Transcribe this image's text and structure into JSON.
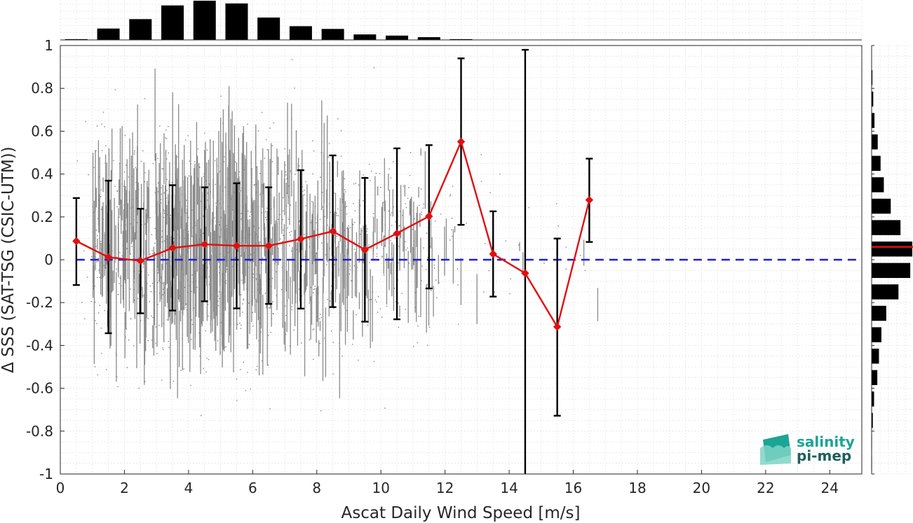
{
  "chart_data": {
    "type": "scatter",
    "xlabel": "Ascat Daily Wind Speed [m/s]",
    "ylabel": "Δ SSS (SAT-TSG (CSIC-UTM))",
    "xlim": [
      0,
      25
    ],
    "ylim": [
      -1,
      1
    ],
    "xticks": [
      0,
      2,
      4,
      6,
      8,
      10,
      12,
      14,
      16,
      18,
      20,
      22,
      24
    ],
    "yticks": [
      -1,
      -0.8,
      -0.6,
      -0.4,
      -0.2,
      0,
      0.2,
      0.4,
      0.6,
      0.8,
      1
    ],
    "ytick_labels": [
      "-1",
      "-0.8",
      "-0.6",
      "-0.4",
      "-0.2",
      "0",
      "0.2",
      "0.4",
      "0.6",
      "0.8",
      "1"
    ],
    "grid": true,
    "zero_line": {
      "y": 0,
      "color": "#1f1fd6",
      "style": "dashed"
    },
    "scatter_color": "#808080",
    "bin_means": {
      "color": "#e01010",
      "x": [
        0.5,
        1.5,
        2.5,
        3.5,
        4.5,
        5.5,
        6.5,
        7.5,
        8.5,
        9.5,
        10.5,
        11.5,
        12.5,
        13.5,
        14.5,
        15.5,
        16.5
      ],
      "y": [
        0.087,
        0.012,
        -0.005,
        0.055,
        0.072,
        0.065,
        0.065,
        0.097,
        0.133,
        0.047,
        0.123,
        0.203,
        0.551,
        0.027,
        -0.063,
        -0.313,
        0.279
      ]
    },
    "error_bars": {
      "color": "#000000",
      "lower": [
        -0.118,
        -0.343,
        -0.25,
        -0.237,
        -0.194,
        -0.227,
        -0.206,
        -0.228,
        -0.221,
        -0.289,
        -0.278,
        -0.134,
        0.163,
        -0.172,
        -1.0,
        -0.728,
        0.083
      ],
      "upper": [
        0.288,
        0.369,
        0.238,
        0.348,
        0.338,
        0.357,
        0.338,
        0.418,
        0.487,
        0.382,
        0.52,
        0.535,
        0.94,
        0.226,
        0.98,
        0.099,
        0.472
      ]
    },
    "top_histogram": {
      "bin_centers": [
        0.5,
        1.5,
        2.5,
        3.5,
        4.5,
        5.5,
        6.5,
        7.5,
        8.5,
        9.5,
        10.5,
        11.5,
        12.5
      ],
      "relative_counts": [
        0.02,
        0.29,
        0.53,
        0.88,
        1.0,
        0.93,
        0.57,
        0.35,
        0.28,
        0.14,
        0.11,
        0.07,
        0.02
      ]
    },
    "right_histogram": {
      "bin_centers": [
        0.85,
        0.75,
        0.65,
        0.55,
        0.45,
        0.35,
        0.25,
        0.15,
        0.05,
        -0.05,
        -0.15,
        -0.25,
        -0.35,
        -0.45,
        -0.55,
        -0.65,
        -0.75,
        -0.85,
        -0.95
      ],
      "relative_counts": [
        0.02,
        0.04,
        0.07,
        0.15,
        0.22,
        0.3,
        0.47,
        0.71,
        1.0,
        0.95,
        0.66,
        0.36,
        0.24,
        0.18,
        0.14,
        0.06,
        0.03,
        0.01,
        0.01
      ],
      "mean_line": {
        "y": 0.06,
        "color": "#e01010"
      }
    }
  },
  "logo": {
    "line1": "salinity",
    "line2": "pi-mep",
    "colors": {
      "teal": "#1aa594",
      "dark": "#1e5f5a"
    }
  }
}
